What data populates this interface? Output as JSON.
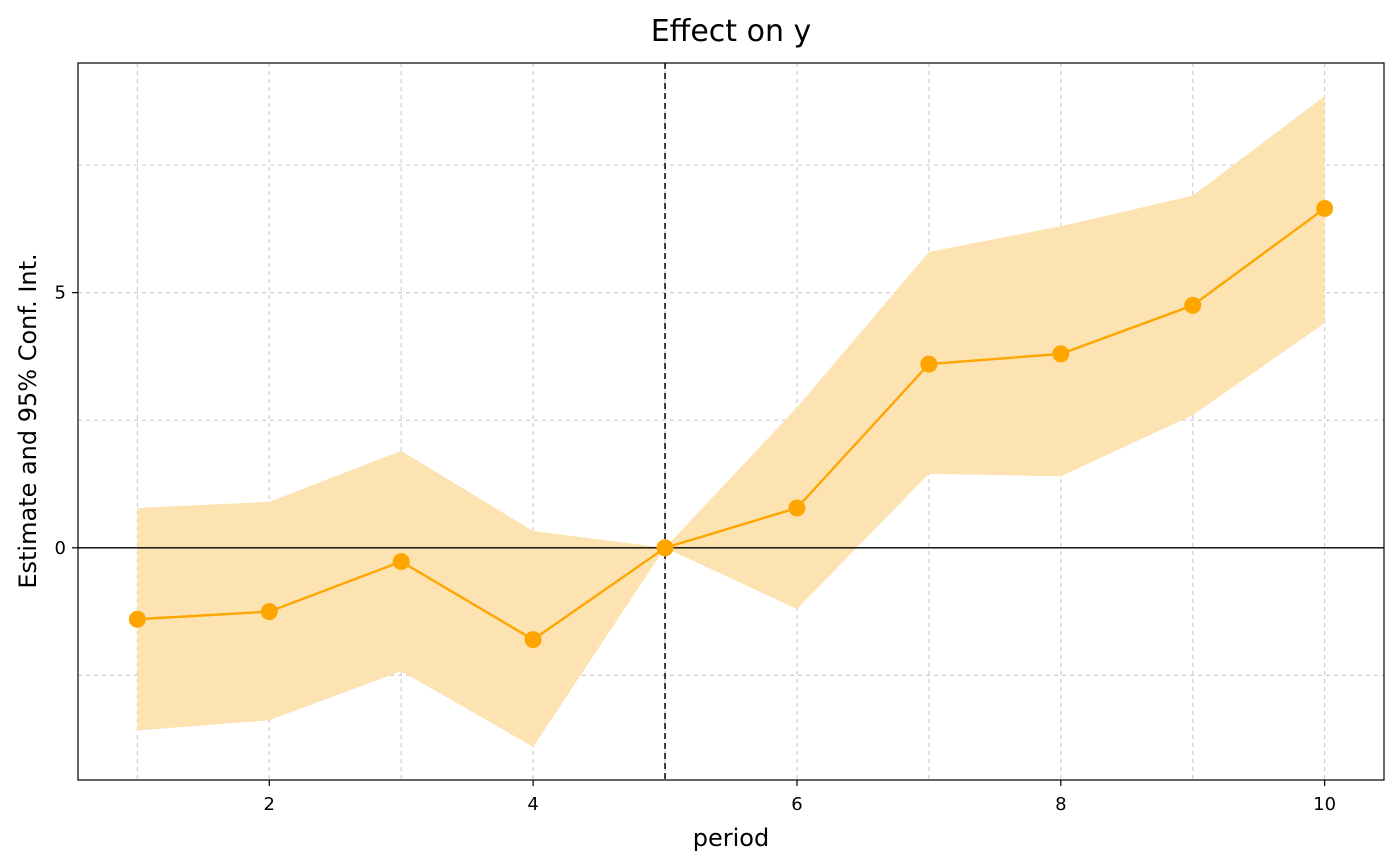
{
  "chart_data": {
    "type": "line",
    "title": "Effect on y",
    "xlabel": "period",
    "ylabel": "Estimate and 95% Conf. Int.",
    "x": [
      1,
      2,
      3,
      4,
      5,
      6,
      7,
      8,
      9,
      10
    ],
    "series": [
      {
        "estimate": [
          -1.4,
          -1.25,
          -0.27,
          -1.8,
          0.0,
          0.78,
          3.6,
          3.8,
          4.75,
          6.65
        ],
        "ci_lower": [
          -3.58,
          -3.38,
          -2.42,
          -3.9,
          0.0,
          -1.2,
          1.45,
          1.4,
          2.6,
          4.4
        ],
        "ci_upper": [
          0.78,
          0.9,
          1.9,
          0.33,
          0.0,
          2.75,
          5.8,
          6.3,
          6.9,
          8.85
        ],
        "color": "#ffa500",
        "band_color": "#fde3b2"
      }
    ],
    "xlim": [
      0.55,
      10.45
    ],
    "ylim": [
      -4.55,
      9.5
    ],
    "xticks": [
      2,
      4,
      6,
      8,
      10
    ],
    "xticklabels": [
      "2",
      "4",
      "6",
      "8",
      "10"
    ],
    "yticks": [
      0,
      5
    ],
    "yticklabels": [
      "0",
      "5"
    ],
    "x_grid": [
      1,
      2,
      3,
      4,
      5,
      6,
      7,
      8,
      9,
      10
    ],
    "y_grid": [
      -2.5,
      0,
      2.5,
      5,
      7.5
    ],
    "reference_vline_x": 5,
    "reference_hline_y": 0,
    "grid": true,
    "legend": "none"
  }
}
